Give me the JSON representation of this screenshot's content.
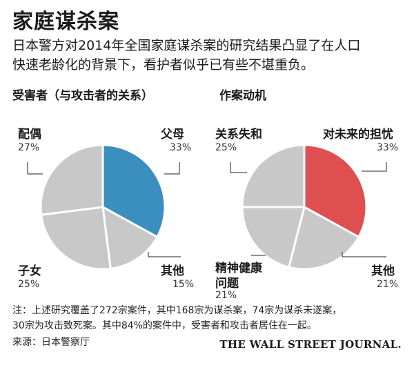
{
  "title": "家庭谋杀案",
  "subtitle_lines": [
    "日本警方对2014年全国家庭谋杀案的研究结果凸显了在人口",
    "快速老龄化的背景下，看护者似乎已有些不堪重负。"
  ],
  "chart_data": [
    {
      "type": "pie",
      "title": "受害者（与攻击者的关系）",
      "slices": [
        {
          "label": "父母",
          "value": 33,
          "display": "33%",
          "color": "#3a8fbe"
        },
        {
          "label": "其他",
          "value": 15,
          "display": "15%",
          "color": "#c8c8c8"
        },
        {
          "label": "子女",
          "value": 25,
          "display": "25%",
          "color": "#c8c8c8"
        },
        {
          "label": "配偶",
          "value": 27,
          "display": "27%",
          "color": "#c8c8c8"
        }
      ]
    },
    {
      "type": "pie",
      "title": "作案动机",
      "slices": [
        {
          "label": "对未来的担忧",
          "value": 33,
          "display": "33%",
          "color": "#e04f4f"
        },
        {
          "label": "其他",
          "value": 21,
          "display": "21%",
          "color": "#c8c8c8"
        },
        {
          "label": "精神健康问题",
          "label_lines": [
            "精神健康",
            "问题"
          ],
          "value": 21,
          "display": "21%",
          "color": "#c8c8c8"
        },
        {
          "label": "关系失和",
          "value": 25,
          "display": "25%",
          "color": "#c8c8c8"
        }
      ]
    }
  ],
  "notes": [
    "注：上述研究覆盖了272宗案件，其中168宗为谋杀案，74宗为谋杀未遂案，",
    "30宗为攻击致死案。其中84%的案件中，受害者和攻击者居住在一起。"
  ],
  "source": "来源：日本警察厅",
  "publisher": "THE WALL STREET JOURNAL."
}
